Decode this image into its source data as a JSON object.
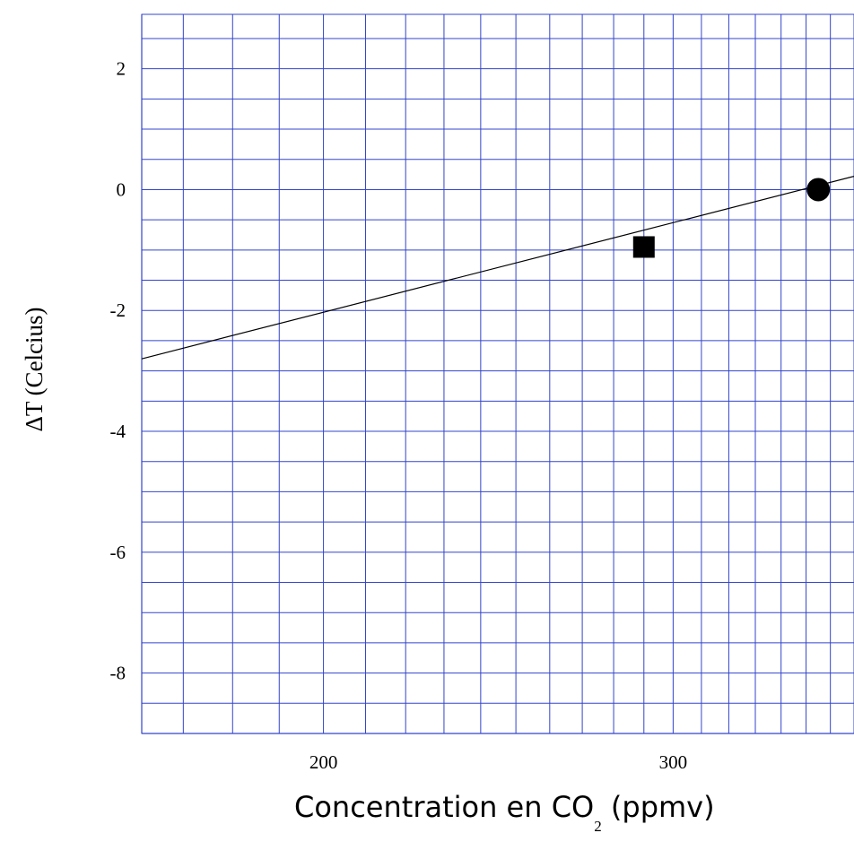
{
  "chart_data": {
    "type": "scatter",
    "title": "",
    "xlabel": {
      "prefix": "Concentration en CO",
      "subscript": "2",
      "suffix": " (ppmv)"
    },
    "ylabel": "ΔT (Celcius)",
    "xscale": "log",
    "xlim": [
      162,
      370
    ],
    "ylim": [
      -9,
      2.9
    ],
    "x_tick_values": [
      200,
      300
    ],
    "x_tick_labels": [
      "200",
      "300"
    ],
    "y_tick_values": [
      2,
      0,
      -2,
      -4,
      -6,
      -8
    ],
    "y_tick_labels": [
      "2",
      "0",
      "-2",
      "-4",
      "-6",
      "-8"
    ],
    "y_minor_step": 0.5,
    "x_minor_gridlines": [
      170,
      180,
      190,
      200,
      210,
      220,
      230,
      240,
      250,
      260,
      270,
      280,
      290,
      300,
      310,
      320,
      330,
      340,
      350,
      360
    ],
    "grid": true,
    "grid_color": "#3344cc",
    "points": [
      {
        "x": 290,
        "y": -0.95,
        "marker": "square",
        "color": "#000000"
      },
      {
        "x": 355,
        "y": 0.0,
        "marker": "circle",
        "color": "#000000"
      }
    ],
    "fit_line": {
      "x": [
        162,
        370
      ],
      "y": [
        -2.8,
        0.22
      ],
      "color": "#000000"
    },
    "legend": "none"
  }
}
